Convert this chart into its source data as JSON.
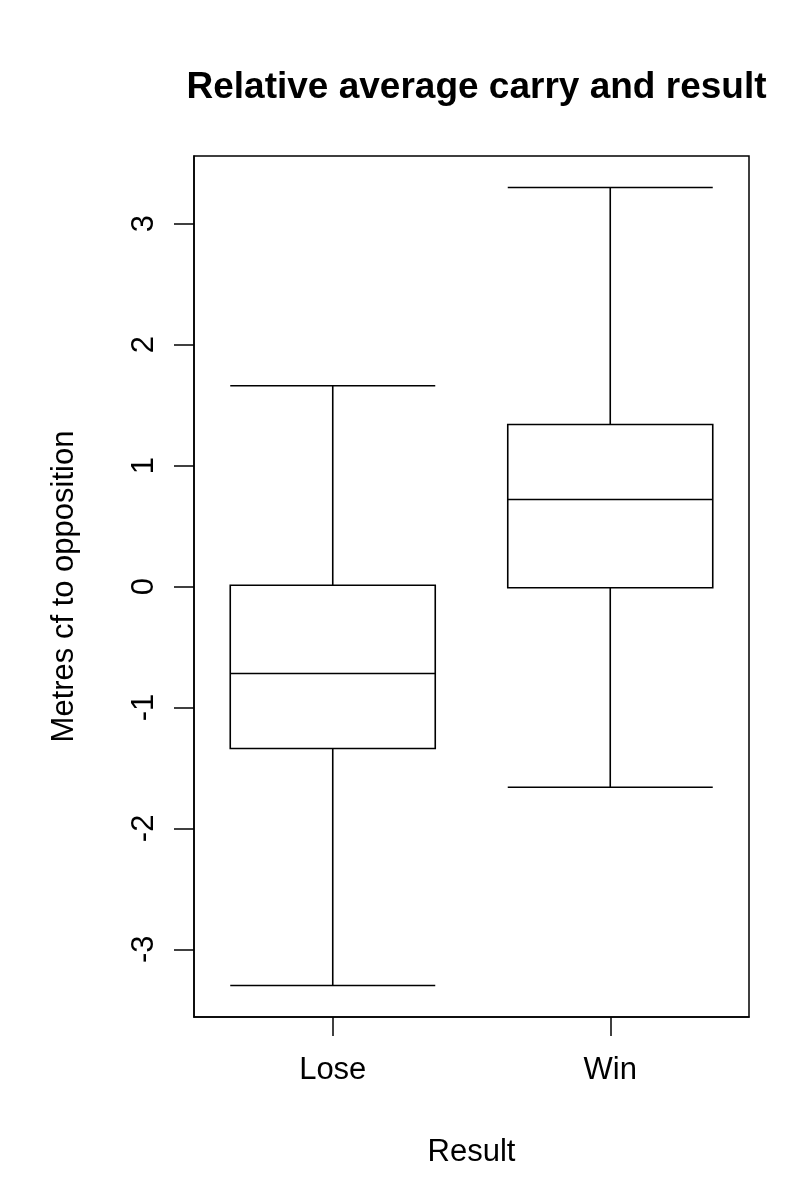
{
  "chart_data": {
    "type": "box",
    "title": "Relative average carry and result",
    "xlabel": "Result",
    "ylabel": "Metres cf to opposition",
    "categories": [
      "Lose",
      "Win"
    ],
    "boxes": [
      {
        "low": -3.3,
        "q1": -1.34,
        "median": -0.72,
        "q3": 0.01,
        "high": 1.66
      },
      {
        "low": -1.66,
        "q1": -0.01,
        "median": 0.72,
        "q3": 1.34,
        "high": 3.3
      }
    ],
    "color": "#000000",
    "ylim": [
      -3.56,
      3.56
    ],
    "yticks": [
      -3,
      -2,
      -1,
      0,
      1,
      2,
      3
    ]
  }
}
